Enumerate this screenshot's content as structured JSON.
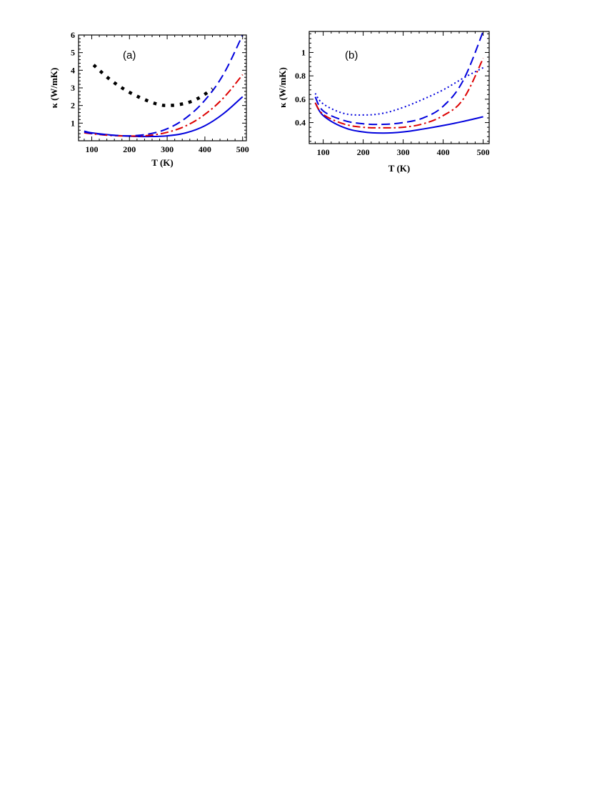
{
  "chart_data": [
    {
      "type": "line",
      "panel_label": "(a)",
      "xlabel": "T (K)",
      "ylabel": "κ (W/mK)",
      "xlim": [
        65,
        510
      ],
      "ylim": [
        0,
        6
      ],
      "xticks": [
        100,
        200,
        300,
        400,
        500
      ],
      "yticks": [
        1,
        2,
        3,
        4,
        5,
        6
      ],
      "grid": false,
      "series": [
        {
          "style": "solid",
          "color": "#0000dd",
          "x": [
            80,
            100,
            150,
            200,
            250,
            300,
            350,
            400,
            450,
            500
          ],
          "y": [
            0.55,
            0.45,
            0.33,
            0.26,
            0.24,
            0.28,
            0.45,
            0.85,
            1.55,
            2.5
          ]
        },
        {
          "style": "dashdot",
          "color": "#dd0000",
          "x": [
            80,
            100,
            150,
            200,
            250,
            300,
            350,
            400,
            450,
            500
          ],
          "y": [
            0.45,
            0.4,
            0.3,
            0.27,
            0.3,
            0.48,
            0.85,
            1.5,
            2.45,
            3.75
          ]
        },
        {
          "style": "dashed",
          "color": "#0000dd",
          "x": [
            80,
            100,
            150,
            200,
            250,
            300,
            350,
            400,
            450,
            500
          ],
          "y": [
            0.5,
            0.42,
            0.32,
            0.28,
            0.38,
            0.68,
            1.3,
            2.3,
            3.8,
            6.0
          ]
        },
        {
          "style": "dotted",
          "color": "#000000",
          "x": [
            105,
            150,
            200,
            250,
            280,
            300,
            330,
            360,
            390,
            420
          ],
          "y": [
            4.3,
            3.45,
            2.75,
            2.25,
            2.05,
            2.0,
            2.05,
            2.2,
            2.5,
            2.95
          ]
        }
      ]
    },
    {
      "type": "line",
      "panel_label": "(b)",
      "xlabel": "T (K)",
      "ylabel": "κ (W/mK)",
      "xlim": [
        65,
        515
      ],
      "ylim": [
        0.22,
        1.18
      ],
      "xticks": [
        100,
        200,
        300,
        400,
        500
      ],
      "yticks": [
        0.4,
        0.6,
        0.8,
        1
      ],
      "ytick_labels": [
        "0.4",
        "0.6",
        "0.8",
        "1"
      ],
      "grid": false,
      "series": [
        {
          "style": "solid",
          "color": "#0000dd",
          "x": [
            80,
            100,
            150,
            200,
            250,
            300,
            350,
            400,
            450,
            500
          ],
          "y": [
            0.57,
            0.46,
            0.36,
            0.32,
            0.31,
            0.32,
            0.345,
            0.375,
            0.41,
            0.45
          ]
        },
        {
          "style": "dashdot",
          "color": "#dd0000",
          "x": [
            80,
            100,
            150,
            200,
            250,
            300,
            350,
            400,
            450,
            500
          ],
          "y": [
            0.57,
            0.47,
            0.39,
            0.36,
            0.355,
            0.36,
            0.39,
            0.46,
            0.6,
            0.95
          ]
        },
        {
          "style": "dashed",
          "color": "#0000dd",
          "x": [
            80,
            100,
            150,
            200,
            250,
            300,
            350,
            400,
            450,
            500
          ],
          "y": [
            0.62,
            0.5,
            0.42,
            0.39,
            0.385,
            0.4,
            0.44,
            0.54,
            0.76,
            1.18
          ]
        },
        {
          "style": "dotted",
          "color": "#0000dd",
          "x": [
            80,
            100,
            150,
            200,
            250,
            300,
            350,
            400,
            450,
            500
          ],
          "y": [
            0.65,
            0.56,
            0.48,
            0.465,
            0.48,
            0.53,
            0.6,
            0.68,
            0.78,
            0.87
          ]
        }
      ]
    }
  ]
}
